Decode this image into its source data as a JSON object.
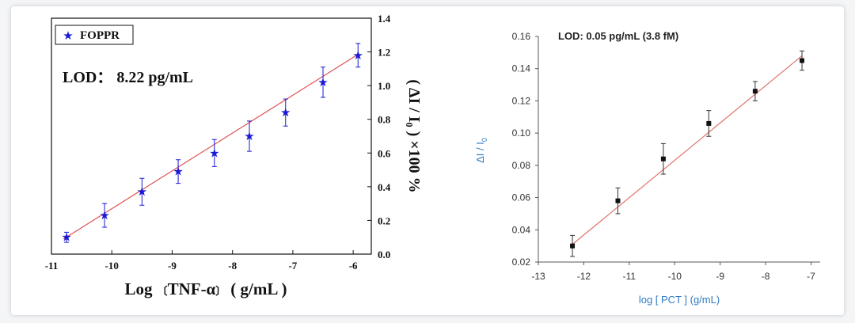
{
  "chart_data": [
    {
      "type": "scatter",
      "series_name": "FOPPR",
      "annotation": "LOD： 8.22 pg/mL",
      "xlabel_parts": [
        "Log",
        "〔",
        "TNF-α",
        "〕",
        "( g/mL )"
      ],
      "ylabel": "( ΔI / I₀ ) ×100 %",
      "xlim": [
        -11,
        -5.7
      ],
      "ylim": [
        0,
        1.4
      ],
      "xticks": [
        "-11",
        "-10",
        "-9",
        "-8",
        "-7",
        "-6"
      ],
      "yticks": [
        "0.0",
        "0.2",
        "0.4",
        "0.6",
        "0.8",
        "1.0",
        "1.2",
        "1.4"
      ],
      "x": [
        -10.75,
        -10.12,
        -9.5,
        -8.9,
        -8.3,
        -7.72,
        -7.12,
        -6.5,
        -5.92
      ],
      "y": [
        0.1,
        0.23,
        0.37,
        0.49,
        0.6,
        0.7,
        0.84,
        1.02,
        1.18
      ],
      "err": [
        0.03,
        0.07,
        0.08,
        0.07,
        0.08,
        0.09,
        0.08,
        0.09,
        0.07
      ],
      "fit": {
        "x": [
          -10.8,
          -5.9
        ],
        "y": [
          0.09,
          1.19
        ]
      },
      "colors": {
        "marker": "#1a1ad6",
        "fit": "#e05050",
        "text": "#111111"
      }
    },
    {
      "type": "scatter",
      "annotation": "LOD: 0.05 pg/mL (3.8 fM)",
      "xlabel": "log [ PCT ] (g/mL)",
      "ylabel_main": "ΔI / I",
      "ylabel_sub": "0",
      "xlim": [
        -13,
        -6.8
      ],
      "ylim": [
        0.02,
        0.16
      ],
      "xticks": [
        "-13",
        "-12",
        "-11",
        "-10",
        "-9",
        "-8",
        "-7"
      ],
      "yticks": [
        "0.02",
        "0.04",
        "0.06",
        "0.08",
        "0.10",
        "0.12",
        "0.14",
        "0.16"
      ],
      "x": [
        -12.25,
        -11.25,
        -10.25,
        -9.25,
        -8.23,
        -7.2
      ],
      "y": [
        0.03,
        0.058,
        0.084,
        0.106,
        0.126,
        0.145
      ],
      "err": [
        0.0065,
        0.008,
        0.0095,
        0.008,
        0.006,
        0.006
      ],
      "fit": {
        "x": [
          -12.25,
          -7.2
        ],
        "y": [
          0.031,
          0.148
        ]
      },
      "colors": {
        "marker": "#111111",
        "fit": "#e0736a",
        "axis": "#444444",
        "label": "#2e7bc4",
        "text": "#222222"
      }
    }
  ]
}
